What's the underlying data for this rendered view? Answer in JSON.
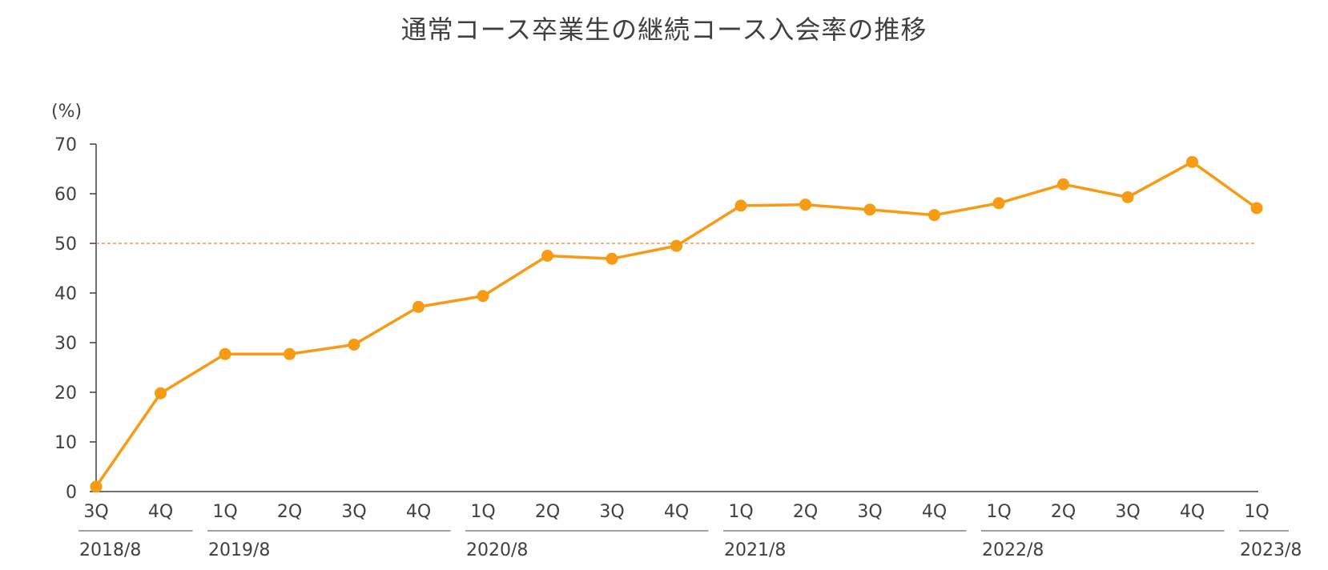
{
  "chart_data": {
    "type": "line",
    "title": "通常コース卒業生の継続コース入会率の推移",
    "ylabel": "(%)",
    "xlabel": "",
    "ylim": [
      0,
      70
    ],
    "yticks": [
      0,
      10,
      20,
      30,
      40,
      50,
      60,
      70
    ],
    "grid": false,
    "legend": "none",
    "reference_line": {
      "value": 50,
      "style": "dashed",
      "color": "#ED7D31"
    },
    "categories": [
      "3Q",
      "4Q",
      "1Q",
      "2Q",
      "3Q",
      "4Q",
      "1Q",
      "2Q",
      "3Q",
      "4Q",
      "1Q",
      "2Q",
      "3Q",
      "4Q",
      "1Q",
      "2Q",
      "3Q",
      "4Q",
      "1Q"
    ],
    "groups": [
      {
        "label": "2018/8",
        "count": 2
      },
      {
        "label": "2019/8",
        "count": 4
      },
      {
        "label": "2020/8",
        "count": 4
      },
      {
        "label": "2021/8",
        "count": 4
      },
      {
        "label": "2022/8",
        "count": 4
      },
      {
        "label": "2023/8",
        "count": 1
      }
    ],
    "series": [
      {
        "color": "#F79A14",
        "values": [
          1.0,
          19.8,
          27.7,
          27.7,
          29.6,
          37.2,
          39.4,
          47.5,
          46.9,
          49.5,
          57.6,
          57.8,
          56.8,
          55.7,
          58.1,
          61.9,
          59.3,
          66.4,
          57.1
        ]
      }
    ]
  }
}
